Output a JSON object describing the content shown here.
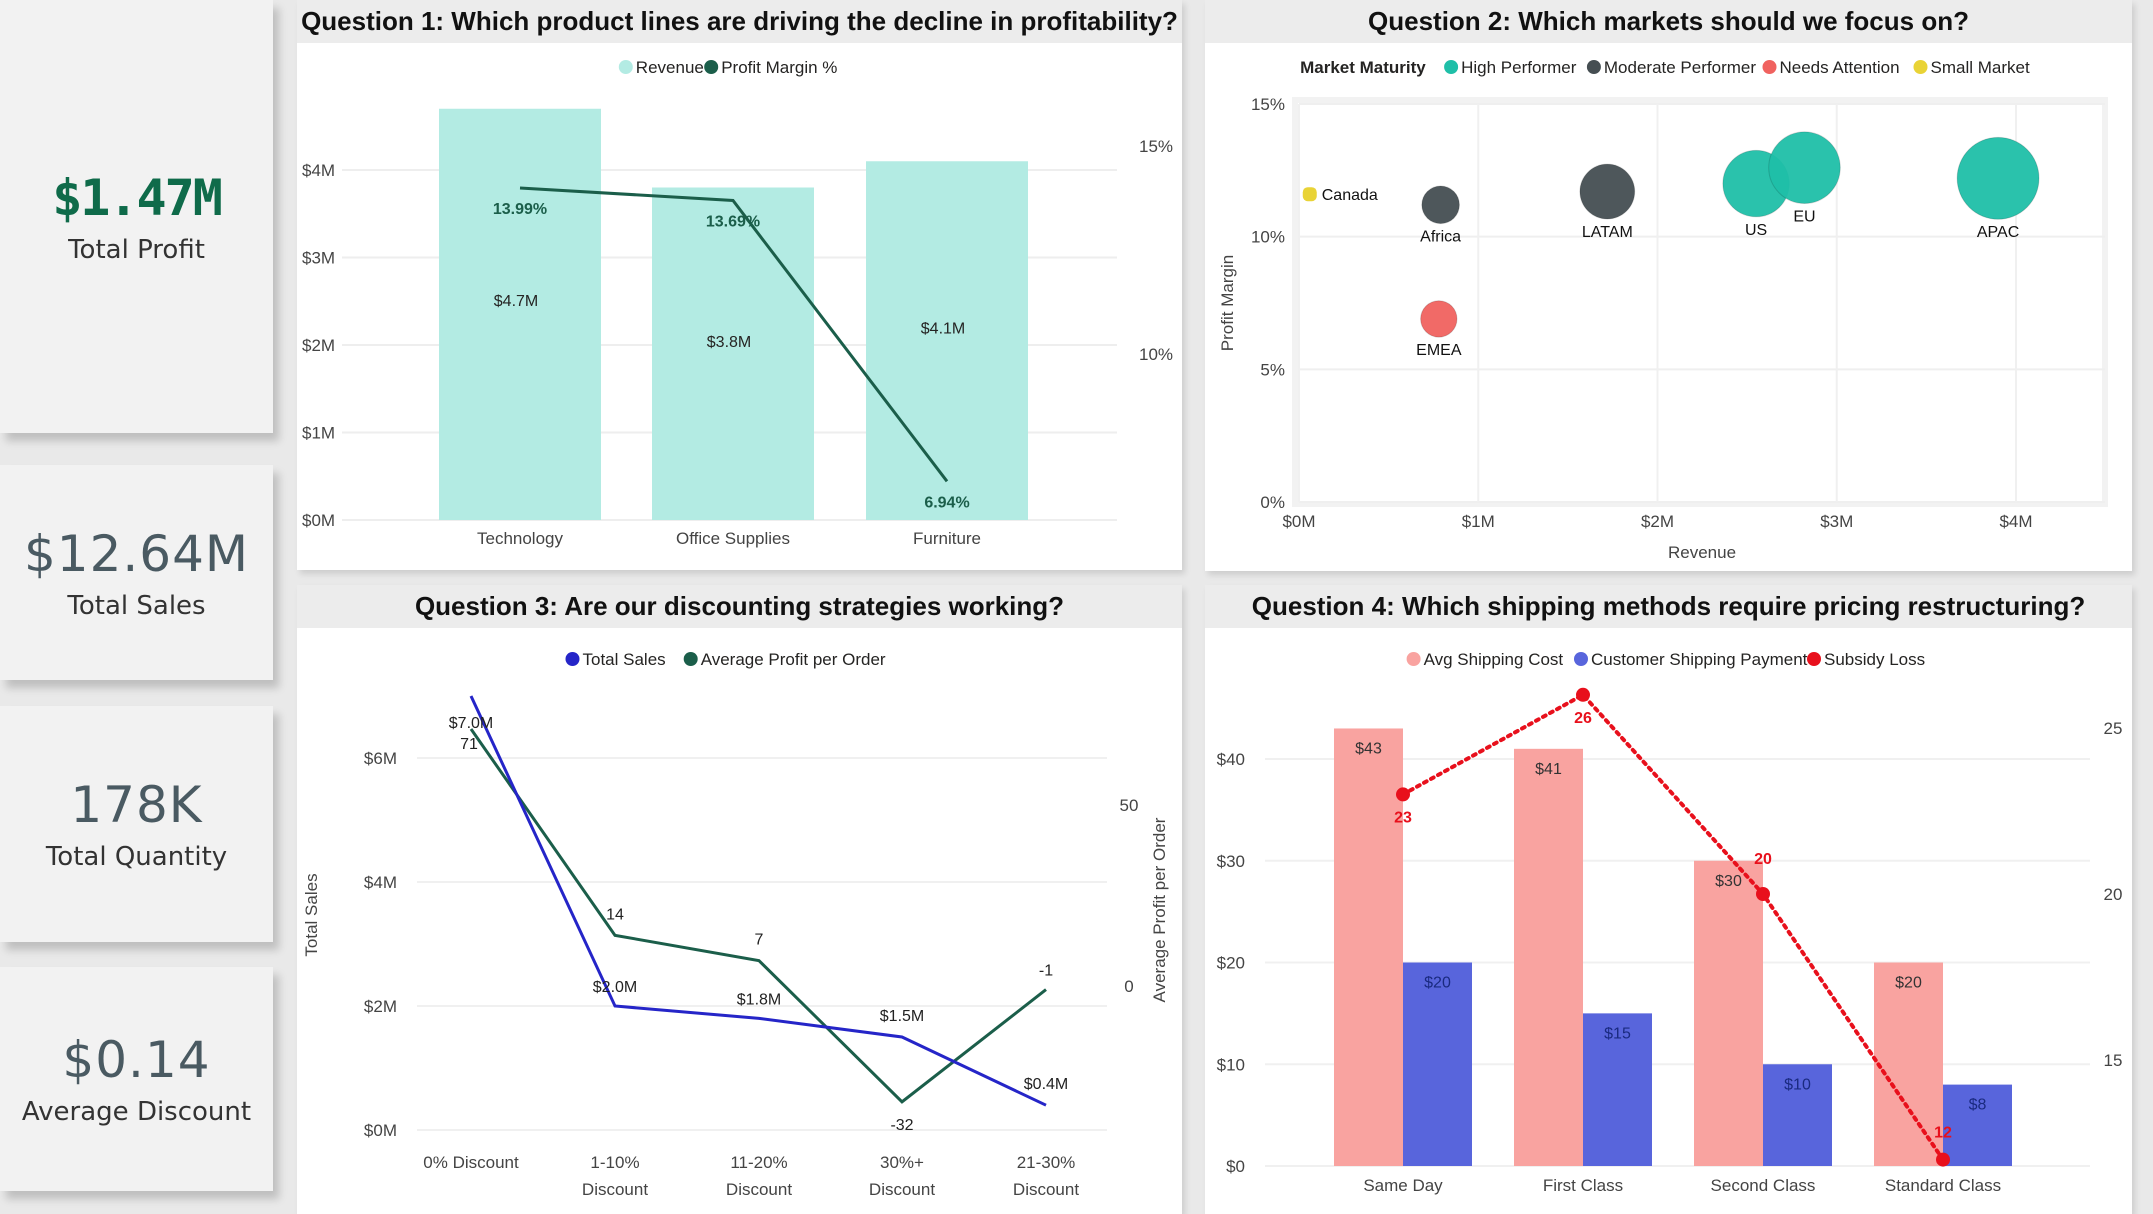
{
  "kpis": [
    {
      "value": "$1.47M",
      "label": "Total Profit"
    },
    {
      "value": "$12.64M",
      "label": "Total Sales"
    },
    {
      "value": "178K",
      "label": "Total Quantity"
    },
    {
      "value": "$0.14",
      "label": "Average Discount"
    }
  ],
  "colors": {
    "kpi_profit": "#0f6b4a",
    "kpi_other": "#4a5a62",
    "revenue_bar": "#b3ebe3",
    "profit_line": "#1b5e4a",
    "high_performer": "#1fbfa8",
    "moderate_performer": "#454e52",
    "needs_attention": "#f0625f",
    "small_market": "#e9d336",
    "total_sales_line": "#2525c8",
    "avg_profit_line": "#1b5e4a",
    "avg_shipping_cost": "#f9a3a0",
    "customer_payment": "#5865dc",
    "subsidy_loss": "#e8101c"
  },
  "chart_data": [
    {
      "id": "q1",
      "type": "bar",
      "title": "Question 1: Which product lines are driving the decline in profitability?",
      "legend": [
        "Revenue",
        "Profit Margin %"
      ],
      "categories": [
        "Technology",
        "Office Supplies",
        "Furniture"
      ],
      "series": [
        {
          "name": "Revenue",
          "kind": "bar",
          "axis": "left",
          "values": [
            4.7,
            3.8,
            4.1
          ],
          "labels": [
            "$4.7M",
            "$3.8M",
            "$4.1M"
          ]
        },
        {
          "name": "Profit Margin %",
          "kind": "line",
          "axis": "right",
          "values": [
            13.99,
            13.69,
            6.94
          ],
          "labels": [
            "13.99%",
            "13.69%",
            "6.94%"
          ]
        }
      ],
      "yticks_left": [
        "$0M",
        "$1M",
        "$2M",
        "$3M",
        "$4M"
      ],
      "ylim_left": [
        0,
        4.7
      ],
      "yticks_right": [
        "10%",
        "15%"
      ],
      "ylim_right_ticks": [
        10,
        15
      ],
      "legend_position": "top-center"
    },
    {
      "id": "q2",
      "type": "scatter",
      "title": "Question 2: Which markets should we focus on?",
      "legend_title": "Market Maturity",
      "legend": [
        "High Performer",
        "Moderate Performer",
        "Needs Attention",
        "Small Market"
      ],
      "xlabel": "Revenue",
      "ylabel": "Profit Margin",
      "xticks": [
        "$0M",
        "$1M",
        "$2M",
        "$3M",
        "$4M"
      ],
      "xlim": [
        0,
        4
      ],
      "yticks": [
        "0%",
        "5%",
        "10%",
        "15%"
      ],
      "ylim": [
        0,
        15
      ],
      "points": [
        {
          "name": "Canada",
          "x": 0.06,
          "y": 11.6,
          "size": 0.15,
          "group": "Small Market"
        },
        {
          "name": "Africa",
          "x": 0.79,
          "y": 11.2,
          "size": 0.8,
          "group": "Moderate Performer"
        },
        {
          "name": "EMEA",
          "x": 0.78,
          "y": 6.9,
          "size": 0.75,
          "group": "Needs Attention"
        },
        {
          "name": "LATAM",
          "x": 1.72,
          "y": 11.7,
          "size": 1.7,
          "group": "Moderate Performer"
        },
        {
          "name": "US",
          "x": 2.55,
          "y": 12.0,
          "size": 2.5,
          "group": "High Performer"
        },
        {
          "name": "EU",
          "x": 2.82,
          "y": 12.6,
          "size": 2.9,
          "group": "High Performer"
        },
        {
          "name": "APAC",
          "x": 3.9,
          "y": 12.2,
          "size": 3.8,
          "group": "High Performer"
        }
      ],
      "grid": true,
      "legend_position": "top-center"
    },
    {
      "id": "q3",
      "type": "line",
      "title": "Question 3: Are our discounting strategies working?",
      "legend": [
        "Total Sales",
        "Average Profit per Order"
      ],
      "categories": [
        [
          "0% Discount"
        ],
        [
          "1-10%",
          "Discount"
        ],
        [
          "11-20%",
          "Discount"
        ],
        [
          "30%+",
          "Discount"
        ],
        [
          "21-30%",
          "Discount"
        ]
      ],
      "series": [
        {
          "name": "Total Sales",
          "axis": "left",
          "values": [
            7.0,
            2.0,
            1.8,
            1.5,
            0.4
          ],
          "labels": [
            "$7.0M",
            "$2.0M",
            "$1.8M",
            "$1.5M",
            "$0.4M"
          ]
        },
        {
          "name": "Average Profit per Order",
          "axis": "right",
          "values": [
            71,
            14,
            7,
            -32,
            -1
          ],
          "labels": [
            "71",
            "14",
            "7",
            "-32",
            "-1"
          ]
        }
      ],
      "ylabel": "Total Sales",
      "ylabel_right": "Average Profit per Order",
      "yticks_left": [
        "$0M",
        "$2M",
        "$4M",
        "$6M"
      ],
      "yticks_right": [
        "0",
        "50"
      ],
      "legend_position": "top-center"
    },
    {
      "id": "q4",
      "type": "bar",
      "title": "Question 4: Which shipping methods require pricing restructuring?",
      "legend": [
        "Avg Shipping Cost",
        "Customer Shipping Payment",
        "Subsidy Loss"
      ],
      "categories": [
        "Same Day",
        "First Class",
        "Second Class",
        "Standard Class"
      ],
      "series": [
        {
          "name": "Avg Shipping Cost",
          "kind": "bar",
          "axis": "left",
          "values": [
            43,
            41,
            30,
            20
          ],
          "labels": [
            "$43",
            "$41",
            "$30",
            "$20"
          ]
        },
        {
          "name": "Customer Shipping Payment",
          "kind": "bar",
          "axis": "left",
          "values": [
            20,
            15,
            10,
            8
          ],
          "labels": [
            "$20",
            "$15",
            "$10",
            "$8"
          ]
        },
        {
          "name": "Subsidy Loss",
          "kind": "line",
          "axis": "right",
          "values": [
            23,
            26,
            20,
            12
          ],
          "labels": [
            "23",
            "26",
            "20",
            "12"
          ]
        }
      ],
      "yticks_left": [
        "$0",
        "$10",
        "$20",
        "$30",
        "$40"
      ],
      "ylim_left": [
        0,
        43
      ],
      "yticks_right": [
        "15",
        "20",
        "25"
      ],
      "legend_position": "top-center"
    }
  ]
}
